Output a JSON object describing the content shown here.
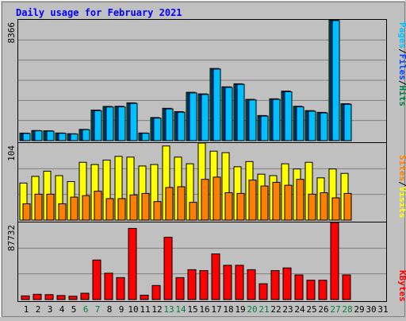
{
  "title": "Daily usage for February 2021",
  "colors": {
    "background": "#c0c0c0",
    "plot_background": "#c0c0c0",
    "grid": "#808080",
    "title": "#0000ff",
    "pages": "#00c0ff",
    "files": "#0040ff",
    "hits": "#008040",
    "visits": "#ffff00",
    "sites": "#ff8000",
    "kbytes": "#ff0000",
    "weekend_label": "#008040",
    "weekday_label": "#000000"
  },
  "right_labels": {
    "top": [
      "Pages",
      "/",
      "Files",
      "/",
      "Hits"
    ],
    "middle": [
      "Sites",
      "/",
      "Visits"
    ],
    "bottom": [
      "KBytes"
    ]
  },
  "chart_data": [
    {
      "type": "bar",
      "name": "top",
      "ymax_label": "8366",
      "ylim": [
        0,
        8366
      ],
      "grid": true,
      "categories": [
        "1",
        "2",
        "3",
        "4",
        "5",
        "6",
        "7",
        "8",
        "9",
        "10",
        "11",
        "12",
        "13",
        "14",
        "15",
        "16",
        "17",
        "18",
        "19",
        "20",
        "21",
        "22",
        "23",
        "24",
        "25",
        "26",
        "27",
        "28",
        "29",
        "30",
        "31"
      ],
      "weekend_days": [
        6,
        7,
        13,
        14,
        20,
        21,
        27,
        28
      ],
      "series": [
        {
          "name": "Hits",
          "values": [
            520,
            700,
            680,
            530,
            480,
            780,
            2120,
            2370,
            2380,
            2620,
            530,
            1600,
            2240,
            2010,
            3350,
            3240,
            5000,
            3730,
            3940,
            2860,
            1740,
            2900,
            3430,
            2380,
            2080,
            1960,
            8366,
            2560,
            0,
            0,
            0
          ]
        },
        {
          "name": "Files",
          "values": [
            510,
            690,
            670,
            520,
            470,
            770,
            2100,
            2350,
            2360,
            2600,
            520,
            1580,
            2220,
            1990,
            3330,
            3220,
            4980,
            3710,
            3920,
            2840,
            1720,
            2880,
            3410,
            2360,
            2060,
            1940,
            8340,
            2540,
            0,
            0,
            0
          ]
        },
        {
          "name": "Pages",
          "values": [
            500,
            680,
            660,
            510,
            460,
            760,
            2080,
            2330,
            2340,
            2580,
            510,
            1560,
            2200,
            1970,
            3310,
            3200,
            4960,
            3690,
            3900,
            2820,
            1700,
            2860,
            3390,
            2340,
            2040,
            1920,
            8320,
            2520,
            0,
            0,
            0
          ]
        }
      ]
    },
    {
      "type": "bar",
      "name": "middle",
      "ymax_label": "104",
      "ylim": [
        0,
        104
      ],
      "grid": true,
      "categories": [
        "1",
        "2",
        "3",
        "4",
        "5",
        "6",
        "7",
        "8",
        "9",
        "10",
        "11",
        "12",
        "13",
        "14",
        "15",
        "16",
        "17",
        "18",
        "19",
        "20",
        "21",
        "22",
        "23",
        "24",
        "25",
        "26",
        "27",
        "28",
        "29",
        "30",
        "31"
      ],
      "series": [
        {
          "name": "Visits",
          "values": [
            50,
            59,
            66,
            60,
            52,
            78,
            75,
            81,
            86,
            85,
            73,
            75,
            100,
            85,
            76,
            104,
            93,
            91,
            72,
            79,
            62,
            60,
            76,
            69,
            78,
            57,
            69,
            63,
            0,
            0,
            0
          ]
        },
        {
          "name": "Sites",
          "values": [
            22,
            35,
            35,
            22,
            31,
            33,
            39,
            29,
            29,
            34,
            36,
            25,
            44,
            45,
            24,
            55,
            58,
            37,
            36,
            54,
            46,
            51,
            47,
            55,
            35,
            37,
            30,
            36,
            0,
            0,
            0
          ]
        }
      ]
    },
    {
      "type": "bar",
      "name": "bottom",
      "ymax_label": "87732",
      "ylim": [
        0,
        87732
      ],
      "grid": true,
      "categories": [
        "1",
        "2",
        "3",
        "4",
        "5",
        "6",
        "7",
        "8",
        "9",
        "10",
        "11",
        "12",
        "13",
        "14",
        "15",
        "16",
        "17",
        "18",
        "19",
        "20",
        "21",
        "22",
        "23",
        "24",
        "25",
        "26",
        "27",
        "28",
        "29",
        "30",
        "31"
      ],
      "series": [
        {
          "name": "KBytes",
          "values": [
            4200,
            6000,
            5600,
            4600,
            3800,
            7200,
            45000,
            30000,
            25000,
            81000,
            5000,
            16000,
            71000,
            25000,
            34000,
            33000,
            52000,
            39000,
            39000,
            34000,
            18000,
            33000,
            36000,
            28000,
            22000,
            22000,
            87732,
            28000,
            0,
            0,
            0
          ]
        }
      ]
    }
  ]
}
